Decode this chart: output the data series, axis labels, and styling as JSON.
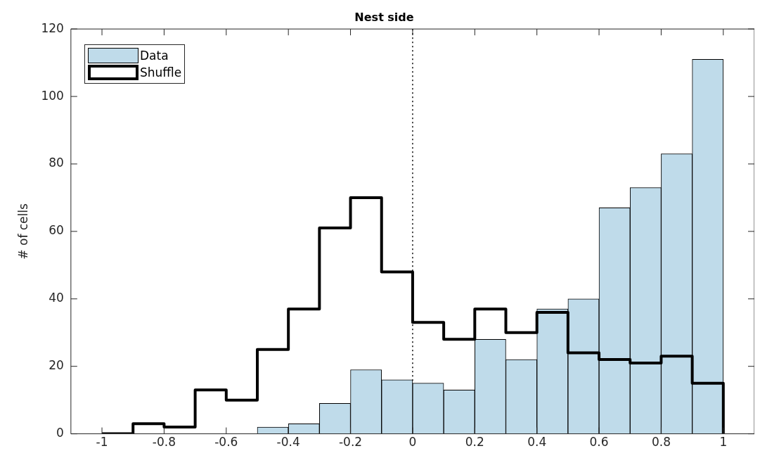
{
  "chart_data": {
    "type": "histogram",
    "title": "Nest side",
    "ylabel": "# of cells",
    "bins": [
      -1,
      -0.9,
      -0.8,
      -0.7,
      -0.6,
      -0.5,
      -0.4,
      -0.3,
      -0.2,
      -0.1,
      0,
      0.1,
      0.2,
      0.3,
      0.4,
      0.5,
      0.6,
      0.7,
      0.8,
      0.9,
      1
    ],
    "series": [
      {
        "name": "Data",
        "color": "#bfdbea",
        "values": [
          0,
          0,
          0,
          0,
          0,
          2,
          3,
          9,
          19,
          16,
          15,
          13,
          28,
          22,
          37,
          40,
          67,
          73,
          83,
          111
        ]
      },
      {
        "name": "Shuffle",
        "type": "step",
        "color": "#000000",
        "x": [
          -1,
          -0.9,
          -0.8,
          -0.7,
          -0.6,
          -0.5,
          -0.4,
          -0.3,
          -0.2,
          -0.1,
          0,
          0.1,
          0.2,
          0.3,
          0.4,
          0.5,
          0.6,
          0.7,
          0.8,
          0.9,
          1
        ],
        "values": [
          0,
          3,
          2,
          13,
          10,
          25,
          37,
          61,
          70,
          48,
          33,
          28,
          37,
          30,
          36,
          24,
          22,
          21,
          23,
          15,
          0
        ]
      }
    ],
    "xlim": [
      -1.1,
      1.1
    ],
    "xticks": [
      -1,
      -0.8,
      -0.6,
      -0.4,
      -0.2,
      0,
      0.2,
      0.4,
      0.6,
      0.8,
      1
    ],
    "ylim": [
      0,
      120
    ],
    "yticks": [
      0,
      20,
      40,
      60,
      80,
      100,
      120
    ],
    "ref_lines": [
      {
        "axis": "x",
        "value": 0,
        "line_style": "dotted"
      }
    ],
    "legend": "top left",
    "grid": false
  }
}
